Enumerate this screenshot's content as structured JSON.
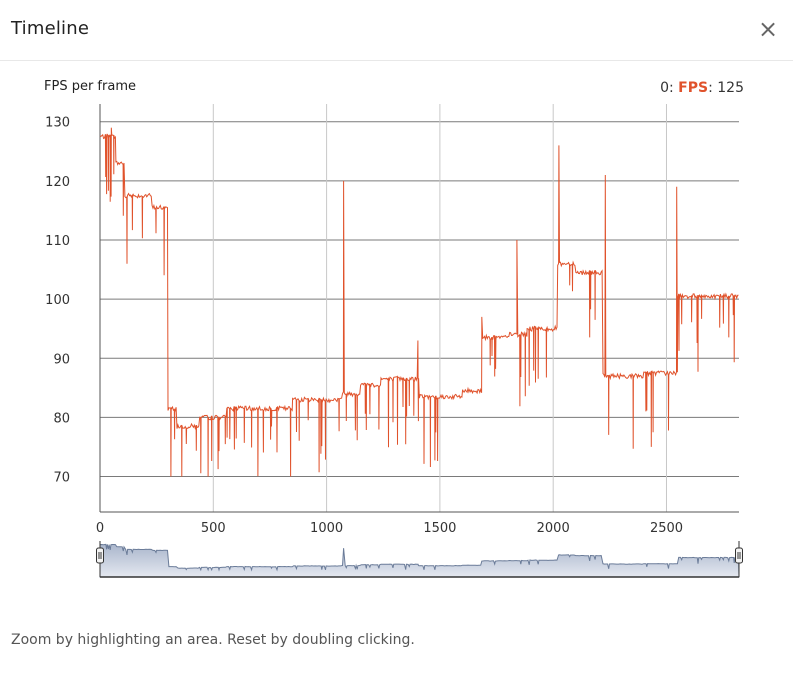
{
  "dialog": {
    "title": "Timeline",
    "close_symbol": "×",
    "close_icon": "close-icon",
    "hint": "Zoom by highlighting an area. Reset by doubling clicking."
  },
  "legend": {
    "index_label": "0:",
    "series_name": "FPS",
    "value": "125",
    "series_color": "#e0522b"
  },
  "chart_data": {
    "type": "line",
    "title": "FPS per frame",
    "xlabel": "",
    "ylabel": "FPS per frame",
    "xlim": [
      0,
      2820
    ],
    "ylim": [
      64,
      133
    ],
    "x_ticks": [
      0,
      500,
      1000,
      1500,
      2000,
      2500
    ],
    "y_ticks": [
      70,
      80,
      90,
      100,
      110,
      120,
      130
    ],
    "grid": true,
    "series": [
      {
        "name": "FPS",
        "color": "#e0522b",
        "segments": [
          {
            "x_start": 0,
            "x_end": 70,
            "base": 127.5
          },
          {
            "x_start": 70,
            "x_end": 110,
            "base": 123
          },
          {
            "x_start": 110,
            "x_end": 230,
            "base": 117.5
          },
          {
            "x_start": 230,
            "x_end": 300,
            "base": 115.5
          },
          {
            "x_start": 300,
            "x_end": 340,
            "base": 81.5
          },
          {
            "x_start": 340,
            "x_end": 440,
            "base": 78.5
          },
          {
            "x_start": 440,
            "x_end": 560,
            "base": 80
          },
          {
            "x_start": 560,
            "x_end": 850,
            "base": 81.5
          },
          {
            "x_start": 850,
            "x_end": 1070,
            "base": 83
          },
          {
            "x_start": 1070,
            "x_end": 1150,
            "base": 84
          },
          {
            "x_start": 1150,
            "x_end": 1240,
            "base": 85.5
          },
          {
            "x_start": 1240,
            "x_end": 1405,
            "base": 86.5
          },
          {
            "x_start": 1405,
            "x_end": 1600,
            "base": 83.5
          },
          {
            "x_start": 1600,
            "x_end": 1685,
            "base": 84.5
          },
          {
            "x_start": 1685,
            "x_end": 1800,
            "base": 93.5
          },
          {
            "x_start": 1800,
            "x_end": 1885,
            "base": 94
          },
          {
            "x_start": 1885,
            "x_end": 2020,
            "base": 95
          },
          {
            "x_start": 2020,
            "x_end": 2100,
            "base": 106
          },
          {
            "x_start": 2100,
            "x_end": 2220,
            "base": 104.5
          },
          {
            "x_start": 2220,
            "x_end": 2400,
            "base": 87
          },
          {
            "x_start": 2400,
            "x_end": 2550,
            "base": 87.5
          },
          {
            "x_start": 2550,
            "x_end": 2820,
            "base": 100.5
          }
        ],
        "drop_min": 70,
        "spikes": [
          {
            "x": 1075,
            "y": 120
          },
          {
            "x": 1403,
            "y": 93
          },
          {
            "x": 1685,
            "y": 97
          },
          {
            "x": 1840,
            "y": 110
          },
          {
            "x": 2025,
            "y": 126
          },
          {
            "x": 2230,
            "y": 121
          },
          {
            "x": 2545,
            "y": 119
          },
          {
            "x": 50,
            "y": 129
          }
        ]
      }
    ]
  }
}
